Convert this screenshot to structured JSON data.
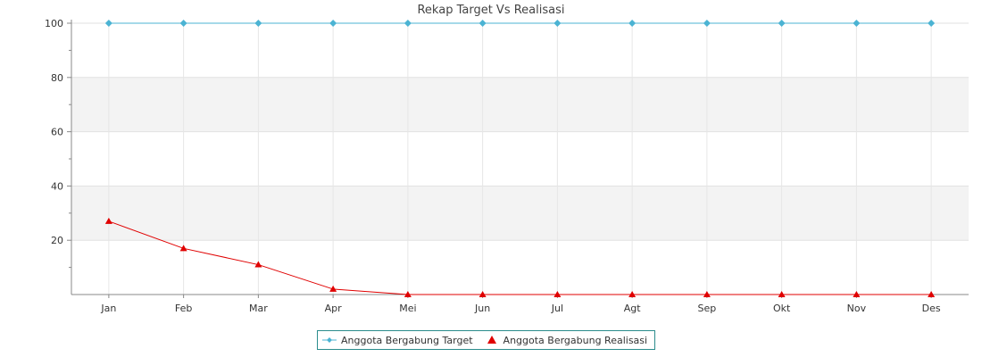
{
  "chart_data": {
    "type": "line",
    "title": "Rekap Target Vs Realisasi",
    "xlabel": "",
    "ylabel": "",
    "categories": [
      "Jan",
      "Feb",
      "Mar",
      "Apr",
      "Mei",
      "Jun",
      "Jul",
      "Agt",
      "Sep",
      "Okt",
      "Nov",
      "Des"
    ],
    "ylim": [
      0,
      100
    ],
    "yticks": [
      20,
      40,
      60,
      80,
      100
    ],
    "grid": true,
    "band_color": "#f3f3f3",
    "legend_position": "bottom-center",
    "series": [
      {
        "name": "Anggota Bergabung Target",
        "color": "#4bb3d3",
        "marker": "diamond",
        "values": [
          100,
          100,
          100,
          100,
          100,
          100,
          100,
          100,
          100,
          100,
          100,
          100
        ]
      },
      {
        "name": "Anggota Bergabung Realisasi",
        "color": "#e00000",
        "marker": "triangle",
        "values": [
          27,
          17,
          11,
          2,
          0,
          0,
          0,
          0,
          0,
          0,
          0,
          0
        ]
      }
    ]
  }
}
